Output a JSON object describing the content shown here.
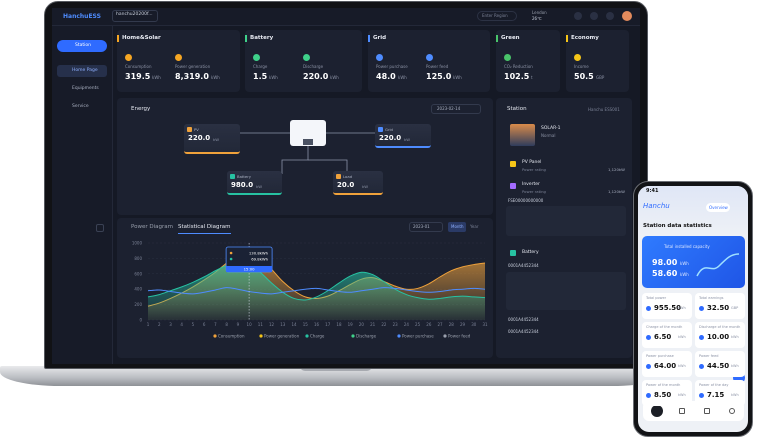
{
  "header": {
    "logo": "HanchuESS",
    "station_select": "hanchu20200f...",
    "region": "Enter Region",
    "city": "Lendon",
    "temperature": "26℃"
  },
  "sidebar": {
    "button": "Station",
    "items": [
      "Home Page",
      "Equipments",
      "Service"
    ]
  },
  "cards": [
    {
      "title": "Home&Solar",
      "metrics": [
        {
          "label": "Consumption",
          "value": "319.5",
          "unit": "kWh"
        },
        {
          "label": "Power generation",
          "value": "8,319.0",
          "unit": "kWh"
        }
      ]
    },
    {
      "title": "Battery",
      "metrics": [
        {
          "label": "Charge",
          "value": "1.5",
          "unit": "kWh"
        },
        {
          "label": "Discharge",
          "value": "220.0",
          "unit": "kWh"
        }
      ]
    },
    {
      "title": "Grid",
      "metrics": [
        {
          "label": "Power purchase",
          "value": "48.0",
          "unit": "kWh"
        },
        {
          "label": "Power feed",
          "value": "125.0",
          "unit": "kWh"
        }
      ]
    },
    {
      "title": "Green",
      "metrics": [
        {
          "label": "CO₂ Reduction",
          "value": "102.5",
          "unit": "t"
        }
      ]
    },
    {
      "title": "Economy",
      "metrics": [
        {
          "label": "Income",
          "value": "50.5",
          "unit": "GBP"
        }
      ]
    }
  ],
  "energy": {
    "title": "Energy",
    "date": "2023-02-14",
    "nodes": [
      {
        "label": "PV",
        "value": "220.0",
        "unit": "kW"
      },
      {
        "label": "Grid",
        "value": "220.0",
        "unit": "kW"
      },
      {
        "label": "Battery",
        "value": "980.0",
        "unit": "kW"
      },
      {
        "label": "Load",
        "value": "20.0",
        "unit": "kW"
      }
    ]
  },
  "diagram": {
    "tabs": [
      "Power Diagram",
      "Statistical Diagram"
    ],
    "date": "2023-01",
    "toggles": [
      "Month",
      "Year"
    ],
    "tooltip": {
      "x": 10,
      "title": "15:00",
      "rows": [
        "130.8kWh",
        "69.8kWh"
      ]
    }
  },
  "chart_data": {
    "type": "area",
    "x": [
      1,
      2,
      3,
      4,
      5,
      6,
      7,
      8,
      9,
      10,
      11,
      12,
      13,
      14,
      15,
      16,
      17,
      18,
      19,
      20,
      21,
      22,
      23,
      24,
      25,
      26,
      27,
      28,
      29,
      30,
      31
    ],
    "xlim": [
      1,
      31
    ],
    "ylim": [
      0,
      1000
    ],
    "yticks": [
      0,
      200,
      400,
      600,
      800,
      1000
    ],
    "grid": true,
    "series": [
      {
        "name": "Consumption",
        "color": "#f0a23b",
        "fill": true,
        "values": [
          180,
          220,
          280,
          350,
          430,
          520,
          620,
          740,
          850,
          900,
          820,
          660,
          500,
          380,
          300,
          280,
          310,
          380,
          460,
          530,
          550,
          500,
          440,
          400,
          410,
          470,
          560,
          640,
          690,
          720,
          740
        ]
      },
      {
        "name": "Power generation",
        "color": "#f5c518"
      },
      {
        "name": "Charge",
        "color": "#27c2a2",
        "fill": true,
        "values": [
          300,
          330,
          380,
          430,
          490,
          560,
          640,
          710,
          760,
          740,
          620,
          480,
          360,
          280,
          260,
          300,
          380,
          480,
          570,
          620,
          590,
          500,
          400,
          330,
          290,
          270,
          280,
          300,
          310,
          300,
          290
        ]
      },
      {
        "name": "Discharge",
        "color": "#3fd18a"
      },
      {
        "name": "Power purchase",
        "color": "#4e8cff",
        "fill": false,
        "values": [
          380,
          390,
          370,
          350,
          340,
          360,
          390,
          420,
          400,
          370,
          350,
          340,
          360,
          380,
          400,
          410,
          390,
          370,
          360,
          380,
          400,
          420,
          410,
          390,
          370,
          360,
          370,
          390,
          400,
          410,
          400
        ]
      },
      {
        "name": "Power feed",
        "color": "#9aa0ad"
      }
    ]
  },
  "station": {
    "title": "Station",
    "subtitle": "Hanchu ESS001",
    "device": "SOLAR-1",
    "status": "Normal",
    "items": [
      {
        "name": "PV Panel",
        "label": "Power rating",
        "value": "1,120kW"
      },
      {
        "name": "Inverter",
        "label": "Power rating",
        "value": "1,120kW"
      }
    ],
    "serial": "FSE00000000000",
    "battery": "Battery",
    "battery_serials": [
      "0001A4452344",
      "0001A4452344",
      "0001A4452344"
    ]
  },
  "phone": {
    "time": "9:41",
    "brand": "Hanchu",
    "tab": "Overview",
    "title": "Station data statistics",
    "capacity": {
      "title": "Total installed capacity",
      "rows": [
        {
          "value": "98.00",
          "unit": "kWh"
        },
        {
          "value": "58.60",
          "unit": "kWh"
        }
      ]
    },
    "tiles": [
      {
        "label": "Total power",
        "value": "955.50",
        "unit": "kWh"
      },
      {
        "label": "Total earnings",
        "value": "32.50",
        "unit": "GBP"
      },
      {
        "label": "Charge of the month",
        "value": "6.50",
        "unit": "kWh"
      },
      {
        "label": "Discharge of the month",
        "value": "10.00",
        "unit": "kWh"
      },
      {
        "label": "Power purchase",
        "value": "64.00",
        "unit": "kWh"
      },
      {
        "label": "Power feed",
        "value": "44.50",
        "unit": "kWh"
      },
      {
        "label": "Power of the month",
        "value": "8.50",
        "unit": "kWh"
      },
      {
        "label": "Power of the day",
        "value": "7.15",
        "unit": "kWh"
      }
    ]
  }
}
